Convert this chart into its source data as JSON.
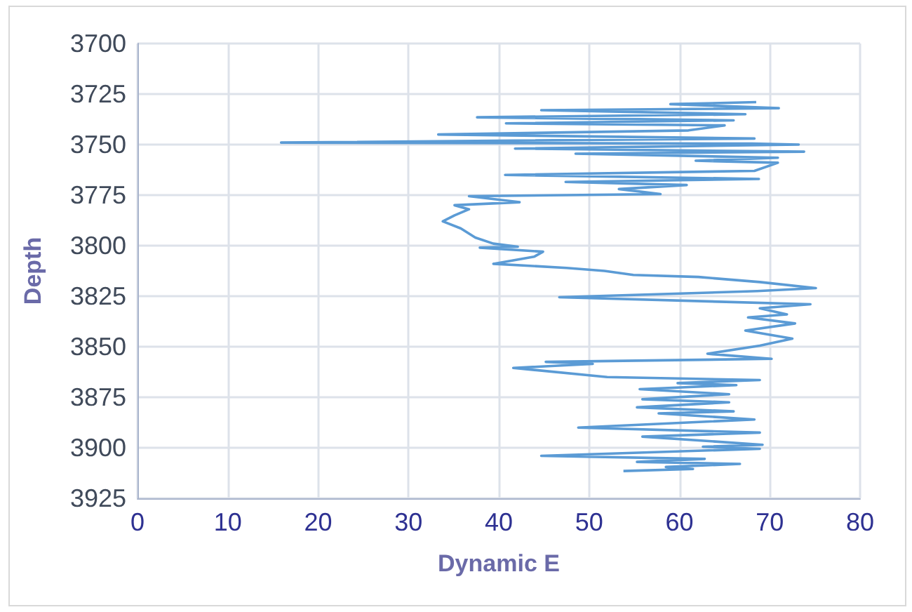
{
  "chart_data": {
    "type": "line",
    "xlabel": "Dynamic E",
    "ylabel": "Depth",
    "xlim": [
      0,
      80
    ],
    "xticks": [
      0,
      10,
      20,
      30,
      40,
      50,
      60,
      70,
      80
    ],
    "ylim": [
      3925,
      3700
    ],
    "yticks": [
      3700,
      3725,
      3750,
      3775,
      3800,
      3825,
      3850,
      3875,
      3900,
      3925
    ],
    "grid": true,
    "marker": "none",
    "line_style": "solid",
    "series": [
      {
        "color": "#5b9bd5",
        "x": [
          68.5,
          59,
          71,
          44.7,
          67.3,
          37.6,
          66,
          40.8,
          65,
          61,
          33.3,
          68.3,
          15.9,
          68,
          73.2,
          41.8,
          73.8,
          48.5,
          70.9,
          61.8,
          70.9,
          68.3,
          40.7,
          68.8,
          47.4,
          60.8,
          53.3,
          57.9,
          36.7,
          42.3,
          35.1,
          36.7,
          35.1,
          33.8,
          35.8,
          37.4,
          39.4,
          42.1,
          37.9,
          44.9,
          43.9,
          39.4,
          47.5,
          51.7,
          54.9,
          62.1,
          68.9,
          75.1,
          68.6,
          46.7,
          74.5,
          68.9,
          71.9,
          67.6,
          72.8,
          67.3,
          72.5,
          68.9,
          63.1,
          70.2,
          45.2,
          50.4,
          41.6,
          52,
          68.9,
          59.8,
          66.3,
          55.6,
          65.5,
          55.9,
          65.5,
          55.3,
          66,
          57.7,
          68.3,
          48.8,
          68.9,
          55.9,
          69.2,
          62.6,
          68.9,
          44.7,
          62.8,
          55.3,
          66.7,
          58.5,
          61.5,
          53.8
        ],
        "values": [
          3729,
          3730,
          3732,
          3733,
          3735,
          3736.5,
          3738,
          3739.5,
          3740.5,
          3743,
          3745,
          3747,
          3749,
          3749.5,
          3750,
          3752,
          3753.5,
          3754.5,
          3756.5,
          3758,
          3759,
          3763,
          3765,
          3767,
          3768.5,
          3770,
          3772,
          3774.5,
          3775.5,
          3778.5,
          3780,
          3782,
          3785,
          3788,
          3791.5,
          3796,
          3799,
          3800.5,
          3801,
          3803,
          3805.5,
          3809,
          3811,
          3812.5,
          3814.5,
          3815.5,
          3818,
          3821,
          3822.5,
          3825.5,
          3829,
          3831,
          3834,
          3835.5,
          3838.5,
          3842,
          3846,
          3849.5,
          3853.5,
          3856,
          3857.5,
          3858.5,
          3860.5,
          3865,
          3866.5,
          3868,
          3869,
          3871,
          3873.5,
          3876,
          3877.5,
          3880,
          3882,
          3883,
          3886,
          3890,
          3892.5,
          3894.5,
          3898.5,
          3899.5,
          3900.5,
          3904,
          3905.5,
          3907,
          3908,
          3909.5,
          3910.5,
          3911.5
        ]
      }
    ]
  }
}
